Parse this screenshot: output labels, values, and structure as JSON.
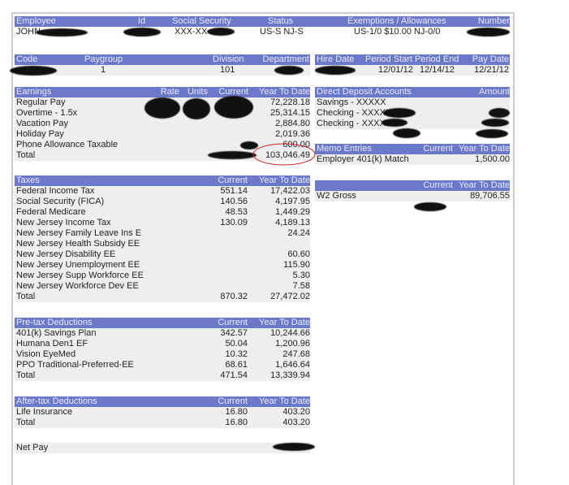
{
  "employee": {
    "headers": [
      "Employee",
      "Id",
      "Social Security",
      "Status",
      "Exemptions / Allowances",
      "Number"
    ],
    "row": {
      "name": "JOHN",
      "ssn": "XXX-XX-",
      "status": "US-S NJ-S",
      "exemptions": "US-1/0 $10.00 NJ-0/0"
    }
  },
  "code": {
    "headers": [
      "Code",
      "Paygroup",
      "Division",
      "Department"
    ],
    "row": {
      "paygroup": "1",
      "division": "101"
    }
  },
  "dates": {
    "headers": [
      "Hire Date",
      "Period Start",
      "Period End",
      "Pay Date"
    ],
    "row": {
      "period_start": "12/01/12",
      "period_end": "12/14/12",
      "pay_date": "12/21/12"
    }
  },
  "earnings": {
    "headers": [
      "Earnings",
      "Rate",
      "Units",
      "Current",
      "Year To Date"
    ],
    "rows": [
      [
        "Regular Pay",
        "",
        "",
        "",
        "72,228.18"
      ],
      [
        "Overtime - 1.5x",
        "",
        "",
        "",
        "25,314.15"
      ],
      [
        "Vacation Pay",
        "",
        "",
        "",
        "2,884.80"
      ],
      [
        "Holiday Pay",
        "",
        "",
        "",
        "2,019.36"
      ],
      [
        "Phone Allowance Taxable",
        "",
        "",
        "",
        "600.00"
      ],
      [
        "Total",
        "",
        "",
        "",
        "103,046.49"
      ]
    ]
  },
  "deposits": {
    "headers": [
      "Direct Deposit Accounts",
      "Amount"
    ],
    "rows": [
      [
        "Savings - XXXXX",
        ""
      ],
      [
        "Checking - XXXXXX",
        ""
      ],
      [
        "Checking - XXXXXXX",
        ""
      ]
    ]
  },
  "memo": {
    "headers": [
      "Memo Entries",
      "Current",
      "Year To Date"
    ],
    "rows": [
      [
        "Employer 401(k) Match",
        "",
        "1,500.00"
      ]
    ]
  },
  "w2": {
    "headers": [
      "",
      "Current",
      "Year To Date"
    ],
    "rows": [
      [
        "W2 Gross",
        "",
        "89,706.55"
      ]
    ]
  },
  "taxes": {
    "headers": [
      "Taxes",
      "Current",
      "Year To Date"
    ],
    "rows": [
      [
        "Federal Income Tax",
        "551.14",
        "17,422.03"
      ],
      [
        "Social Security (FICA)",
        "140.56",
        "4,197.95"
      ],
      [
        "Federal Medicare",
        "48.53",
        "1,449.29"
      ],
      [
        "New Jersey Income Tax",
        "130.09",
        "4,189.13"
      ],
      [
        "New Jersey Family Leave Ins E",
        "",
        "24.24"
      ],
      [
        "New Jersey Health Subsidy EE",
        "",
        ""
      ],
      [
        "New Jersey Disability EE",
        "",
        "60.60"
      ],
      [
        "New Jersey Unemployment EE",
        "",
        "115.90"
      ],
      [
        "New Jersey Supp Workforce EE",
        "",
        "5.30"
      ],
      [
        "New Jersey Workforce Dev EE",
        "",
        "7.58"
      ],
      [
        "Total",
        "870.32",
        "27,472.02"
      ]
    ]
  },
  "pretax": {
    "headers": [
      "Pre-tax Deductions",
      "Current",
      "Year To Date"
    ],
    "rows": [
      [
        "401(k) Savings Plan",
        "342.57",
        "10,244.66"
      ],
      [
        "Humana Den1 EF",
        "50.04",
        "1,200.96"
      ],
      [
        "Vision EyeMed",
        "10.32",
        "247.68"
      ],
      [
        "PPO Traditional-Preferred-EE",
        "68.61",
        "1,646.64"
      ],
      [
        "Total",
        "471.54",
        "13,339.94"
      ]
    ]
  },
  "aftertax": {
    "headers": [
      "After-tax Deductions",
      "Current",
      "Year To Date"
    ],
    "rows": [
      [
        "Life Insurance",
        "16.80",
        "403.20"
      ],
      [
        "Total",
        "16.80",
        "403.20"
      ]
    ]
  },
  "netpay": {
    "label": "Net Pay"
  },
  "colors": {
    "header": "#6c78c8",
    "row": "#eeeeee",
    "annotation": "#cc2222"
  }
}
